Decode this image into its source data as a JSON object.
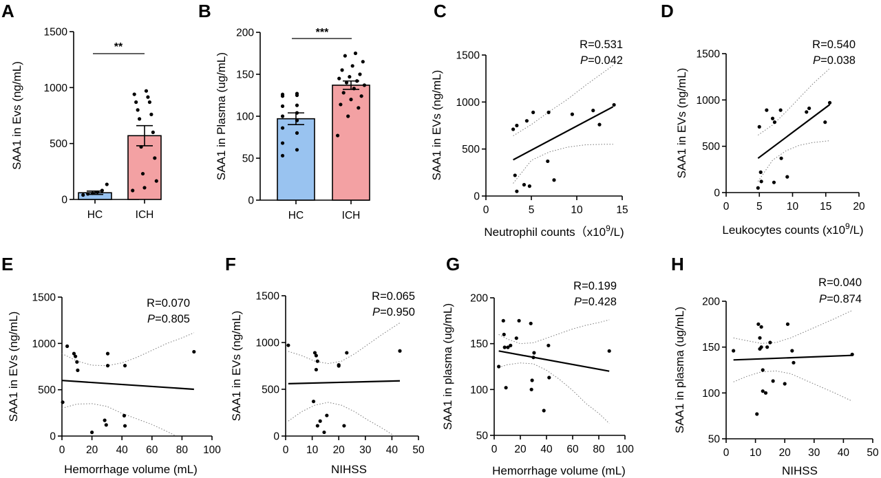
{
  "figure": {
    "label_color": "#000000"
  },
  "chart_data": [
    {
      "panel": "A",
      "type": "bar",
      "categories": [
        "HC",
        "ICH"
      ],
      "values": [
        60,
        570
      ],
      "sem": [
        15,
        90
      ],
      "colors": [
        "#99c3f0",
        "#f3a1a3"
      ],
      "points": [
        [
          40,
          50,
          55,
          65,
          80,
          135
        ],
        [
          80,
          105,
          165,
          230,
          370,
          470,
          600,
          720,
          760,
          800,
          870,
          870,
          915,
          940,
          970
        ]
      ],
      "ylabel": "SAA1 in Evs (ng/mL)",
      "ylim": [
        0,
        1500
      ],
      "yticks": [
        "0",
        "500",
        "1000",
        "1500"
      ],
      "significance": "**"
    },
    {
      "panel": "B",
      "type": "bar",
      "categories": [
        "HC",
        "ICH"
      ],
      "values": [
        97,
        137
      ],
      "sem": [
        7,
        5
      ],
      "colors": [
        "#99c3f0",
        "#f3a1a3"
      ],
      "points": [
        [
          53,
          60,
          68,
          80,
          86,
          95,
          100,
          104,
          112,
          113,
          124,
          125,
          126,
          127
        ],
        [
          77,
          100,
          110,
          114,
          120,
          124,
          128,
          133,
          137,
          140,
          142,
          145,
          147,
          150,
          155,
          160,
          165,
          172,
          175
        ]
      ],
      "ylabel": "SAA1 in Plasma (ug/mL)",
      "ylim": [
        0,
        200
      ],
      "yticks": [
        "0",
        "50",
        "100",
        "150",
        "200"
      ],
      "significance": "***"
    },
    {
      "panel": "C",
      "type": "scatter",
      "xlabel": "Neutrophil counts（x10",
      "xlabel_sup": "9",
      "xlabel_end": "/L)",
      "ylabel": "SAA1 in EVs (ng/mL)",
      "xlim": [
        0,
        15
      ],
      "ylim": [
        0,
        1500
      ],
      "xticks": [
        "0",
        "5",
        "10",
        "15"
      ],
      "yticks": [
        "0",
        "500",
        "1000",
        "1500"
      ],
      "stat_r": "R=0.531",
      "stat_p_label": "P",
      "stat_p_value": "=0.042",
      "points": [
        [
          3.0,
          710
        ],
        [
          3.4,
          750
        ],
        [
          4.5,
          800
        ],
        [
          5.2,
          890
        ],
        [
          6.9,
          890
        ],
        [
          9.5,
          870
        ],
        [
          11.8,
          910
        ],
        [
          12.5,
          760
        ],
        [
          14.1,
          970
        ],
        [
          3.2,
          220
        ],
        [
          3.4,
          50
        ],
        [
          4.2,
          120
        ],
        [
          4.8,
          105
        ],
        [
          6.8,
          370
        ],
        [
          7.5,
          170
        ]
      ],
      "fit": [
        [
          3.0,
          385
        ],
        [
          14.0,
          950
        ]
      ],
      "ci_upper": [
        [
          3.0,
          640
        ],
        [
          5.0,
          760
        ],
        [
          7.0,
          900
        ],
        [
          9.0,
          1030
        ],
        [
          11.0,
          1180
        ],
        [
          13.0,
          1320
        ],
        [
          14.0,
          1390
        ]
      ],
      "ci_lower": [
        [
          3.0,
          135
        ],
        [
          5.0,
          380
        ],
        [
          7.0,
          470
        ],
        [
          9.0,
          520
        ],
        [
          11.0,
          545
        ],
        [
          13.0,
          550
        ],
        [
          14.0,
          550
        ]
      ]
    },
    {
      "panel": "D",
      "type": "scatter",
      "xlabel": "Leukocytes counts (x10",
      "xlabel_sup": "9",
      "xlabel_end": "/L)",
      "ylabel": "SAA1 in EVs (ng/mL)",
      "xlim": [
        0,
        20
      ],
      "ylim": [
        0,
        1500
      ],
      "xticks": [
        "0",
        "5",
        "10",
        "15",
        "20"
      ],
      "yticks": [
        "0",
        "500",
        "1000",
        "1500"
      ],
      "stat_r": "R=0.540",
      "stat_p_label": "P",
      "stat_p_value": "=0.038",
      "points": [
        [
          4.8,
          50
        ],
        [
          5.0,
          710
        ],
        [
          5.2,
          220
        ],
        [
          5.3,
          120
        ],
        [
          6.1,
          890
        ],
        [
          7.0,
          800
        ],
        [
          7.3,
          760
        ],
        [
          7.2,
          110
        ],
        [
          8.2,
          890
        ],
        [
          8.3,
          370
        ],
        [
          9.2,
          170
        ],
        [
          12.1,
          870
        ],
        [
          12.5,
          910
        ],
        [
          14.9,
          760
        ],
        [
          15.6,
          970
        ]
      ],
      "fit": [
        [
          4.8,
          370
        ],
        [
          15.6,
          950
        ]
      ],
      "ci_upper": [
        [
          4.8,
          620
        ],
        [
          7.0,
          730
        ],
        [
          9.0,
          870
        ],
        [
          11.0,
          1020
        ],
        [
          13.0,
          1170
        ],
        [
          15.6,
          1340
        ]
      ],
      "ci_lower": [
        [
          4.8,
          120
        ],
        [
          7.0,
          350
        ],
        [
          9.0,
          450
        ],
        [
          11.0,
          510
        ],
        [
          13.0,
          540
        ],
        [
          15.6,
          560
        ]
      ]
    },
    {
      "panel": "E",
      "type": "scatter",
      "xlabel": "Hemorrhage volume (mL)",
      "ylabel": "SAA1 in EVs (ng/mL)",
      "xlim": [
        0,
        100
      ],
      "ylim": [
        0,
        1500
      ],
      "xticks": [
        "0",
        "20",
        "40",
        "60",
        "80",
        "100"
      ],
      "yticks": [
        "0",
        "500",
        "1000",
        "1500"
      ],
      "stat_r": "R=0.070",
      "stat_p_label": "P",
      "stat_p_value": "=0.805",
      "points": [
        [
          0.5,
          365
        ],
        [
          3.5,
          970
        ],
        [
          8,
          890
        ],
        [
          9,
          860
        ],
        [
          10,
          800
        ],
        [
          10.5,
          710
        ],
        [
          20,
          40
        ],
        [
          28.5,
          170
        ],
        [
          29.5,
          120
        ],
        [
          30.5,
          890
        ],
        [
          30.5,
          760
        ],
        [
          41.5,
          220
        ],
        [
          42,
          110
        ],
        [
          42,
          760
        ],
        [
          88,
          910
        ]
      ],
      "fit": [
        [
          0,
          600
        ],
        [
          88,
          505
        ]
      ],
      "ci_upper": [
        [
          0,
          890
        ],
        [
          10,
          810
        ],
        [
          20,
          765
        ],
        [
          30,
          760
        ],
        [
          40,
          790
        ],
        [
          50,
          850
        ],
        [
          60,
          925
        ],
        [
          70,
          1000
        ],
        [
          80,
          1060
        ],
        [
          88,
          1115
        ]
      ],
      "ci_lower": [
        [
          0,
          300
        ],
        [
          10,
          345
        ],
        [
          20,
          350
        ],
        [
          30,
          320
        ],
        [
          40,
          245
        ],
        [
          50,
          185
        ],
        [
          60,
          125
        ],
        [
          70,
          50
        ],
        [
          76,
          0
        ]
      ]
    },
    {
      "panel": "F",
      "type": "scatter",
      "xlabel": "NIHSS",
      "ylabel": "SAA1 in EVs (ng/mL)",
      "xlim": [
        0,
        50
      ],
      "ylim": [
        0,
        1500
      ],
      "xticks": [
        "0",
        "10",
        "20",
        "30",
        "40",
        "50"
      ],
      "yticks": [
        "0",
        "500",
        "1000",
        "1500"
      ],
      "stat_r": "R=0.065",
      "stat_p_label": "P",
      "stat_p_value": "=0.950",
      "points": [
        [
          1,
          970
        ],
        [
          10.5,
          370
        ],
        [
          11,
          890
        ],
        [
          11.5,
          710
        ],
        [
          11.5,
          860
        ],
        [
          12,
          800
        ],
        [
          12,
          110
        ],
        [
          13,
          160
        ],
        [
          14.5,
          40
        ],
        [
          15.5,
          220
        ],
        [
          20,
          760
        ],
        [
          20,
          750
        ],
        [
          22,
          110
        ],
        [
          23,
          890
        ],
        [
          43,
          910
        ]
      ],
      "fit": [
        [
          1,
          560
        ],
        [
          43,
          590
        ]
      ],
      "ci_upper": [
        [
          1,
          905
        ],
        [
          6,
          860
        ],
        [
          11,
          800
        ],
        [
          16,
          775
        ],
        [
          21,
          800
        ],
        [
          26,
          880
        ],
        [
          31,
          980
        ],
        [
          36,
          1080
        ],
        [
          43,
          1210
        ]
      ],
      "ci_lower": [
        [
          1,
          160
        ],
        [
          6,
          260
        ],
        [
          11,
          330
        ],
        [
          16,
          360
        ],
        [
          21,
          330
        ],
        [
          26,
          260
        ],
        [
          31,
          170
        ],
        [
          36,
          90
        ],
        [
          41,
          0
        ]
      ]
    },
    {
      "panel": "G",
      "type": "scatter",
      "xlabel": "Hemorrhage volume (mL)",
      "ylabel": "SAA1 in plasma (ug/mL)",
      "xlim": [
        0,
        100
      ],
      "ylim": [
        50,
        200
      ],
      "xticks": [
        "0",
        "20",
        "40",
        "60",
        "80",
        "100"
      ],
      "yticks": [
        "50",
        "100",
        "150",
        "200"
      ],
      "stat_r": "R=0.199",
      "stat_p_label": "P",
      "stat_p_value": "=0.428",
      "points": [
        [
          3.5,
          125
        ],
        [
          7,
          175
        ],
        [
          7.5,
          160
        ],
        [
          8,
          146
        ],
        [
          9,
          102
        ],
        [
          10.5,
          146
        ],
        [
          12.5,
          148
        ],
        [
          17,
          156
        ],
        [
          19,
          175
        ],
        [
          28,
          172
        ],
        [
          28.5,
          100
        ],
        [
          29,
          110
        ],
        [
          30,
          135
        ],
        [
          30.5,
          140
        ],
        [
          38,
          77
        ],
        [
          41.5,
          148
        ],
        [
          42,
          113
        ],
        [
          88,
          142
        ]
      ],
      "fit": [
        [
          3.5,
          142
        ],
        [
          88,
          120
        ]
      ],
      "ci_upper": [
        [
          3.5,
          160
        ],
        [
          10,
          155
        ],
        [
          20,
          150
        ],
        [
          30,
          151
        ],
        [
          40,
          156
        ],
        [
          50,
          161
        ],
        [
          60,
          166
        ],
        [
          70,
          170
        ],
        [
          80,
          173
        ],
        [
          88,
          176
        ]
      ],
      "ci_lower": [
        [
          3.5,
          124
        ],
        [
          10,
          127
        ],
        [
          20,
          129
        ],
        [
          30,
          128
        ],
        [
          40,
          121
        ],
        [
          50,
          111
        ],
        [
          60,
          99
        ],
        [
          70,
          85
        ],
        [
          80,
          74
        ],
        [
          88,
          63
        ]
      ]
    },
    {
      "panel": "H",
      "type": "scatter",
      "xlabel": "NIHSS",
      "ylabel": "SAA1 in plasma (ug/mL)",
      "xlim": [
        0,
        50
      ],
      "ylim": [
        50,
        200
      ],
      "xticks": [
        "0",
        "10",
        "20",
        "30",
        "40",
        "50"
      ],
      "yticks": [
        "50",
        "100",
        "150",
        "200"
      ],
      "stat_r": "R=0.040",
      "stat_p_label": "P",
      "stat_p_value": "=0.874",
      "points": [
        [
          2.5,
          146
        ],
        [
          10.5,
          77
        ],
        [
          11,
          175
        ],
        [
          11.5,
          160
        ],
        [
          11.5,
          148
        ],
        [
          12,
          172
        ],
        [
          12,
          150
        ],
        [
          12.5,
          125
        ],
        [
          12.5,
          102
        ],
        [
          13.5,
          100
        ],
        [
          14,
          150
        ],
        [
          15,
          155
        ],
        [
          16,
          113
        ],
        [
          20,
          110
        ],
        [
          21,
          175
        ],
        [
          22.5,
          146
        ],
        [
          23,
          133
        ],
        [
          43,
          142
        ]
      ],
      "fit": [
        [
          2.5,
          136
        ],
        [
          43,
          141
        ]
      ],
      "ci_upper": [
        [
          2.5,
          160
        ],
        [
          7,
          157
        ],
        [
          12,
          154
        ],
        [
          17,
          155
        ],
        [
          22,
          160
        ],
        [
          27,
          167
        ],
        [
          32,
          174
        ],
        [
          37,
          181
        ],
        [
          43,
          190
        ]
      ],
      "ci_lower": [
        [
          2.5,
          112
        ],
        [
          7,
          118
        ],
        [
          12,
          123
        ],
        [
          17,
          124
        ],
        [
          22,
          121
        ],
        [
          27,
          114
        ],
        [
          32,
          107
        ],
        [
          37,
          100
        ],
        [
          43,
          91
        ]
      ]
    }
  ]
}
